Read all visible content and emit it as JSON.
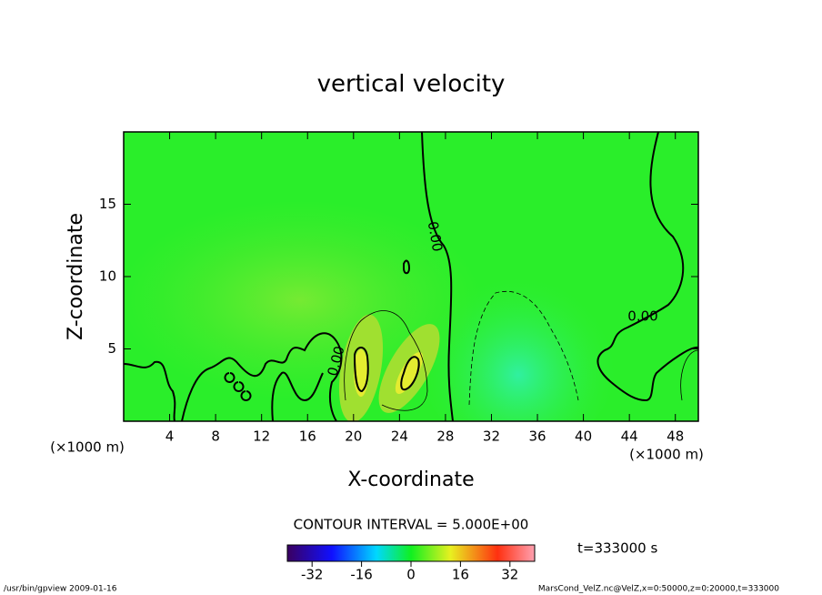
{
  "chart_data": {
    "type": "contour",
    "title": "vertical velocity",
    "x_label": "X-coordinate",
    "y_label": "Z-coordinate",
    "x_units": "(×1000 m)",
    "xlim": [
      0,
      50
    ],
    "xticks": [
      4,
      8,
      12,
      16,
      20,
      24,
      28,
      32,
      36,
      40,
      44,
      48
    ],
    "ylim": [
      0,
      20
    ],
    "yticks": [
      5,
      10,
      15
    ],
    "contour_labels": [
      "0.00",
      "0.00",
      "0.00"
    ],
    "contour_interval": "CONTOUR INTERVAL = 5.000E+00",
    "time_label": "t=333000 s",
    "colorbar": {
      "lim": [
        -40,
        40
      ],
      "ticks": [
        -32,
        -16,
        0,
        16,
        32
      ]
    },
    "footer": {
      "left": "/usr/bin/gpview   2009-01-16",
      "right": "MarsCond_VelZ.nc@VelZ,x=0:50000,z=0:20000,t=333000"
    }
  }
}
